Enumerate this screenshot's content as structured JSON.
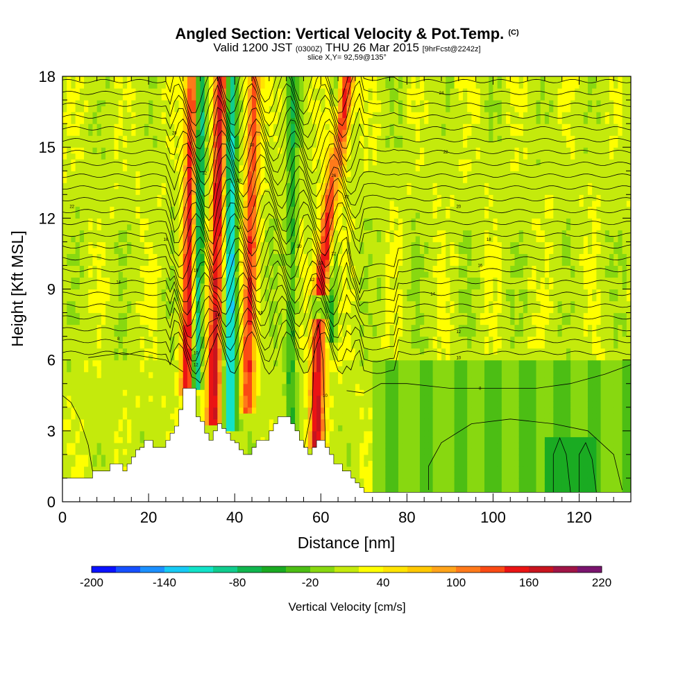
{
  "header": {
    "title": "Angled Section: Vertical Velocity & Pot.Temp.",
    "title_unit": "(C)",
    "valid_prefix": "Valid 1200 JST",
    "valid_zulu": "(0300Z)",
    "valid_date": "THU 26 Mar 2015",
    "forecast": "[9hrFcst@2242z]",
    "slice": "slice X,Y= 92,59@135°"
  },
  "chart_data": {
    "type": "heatmap",
    "xlabel": "Distance [nm]",
    "ylabel": "Height [Kft MSL]",
    "xlim": [
      0,
      132
    ],
    "ylim": [
      0,
      18
    ],
    "x_ticks": [
      0,
      20,
      40,
      60,
      80,
      100,
      120
    ],
    "y_ticks": [
      0,
      3,
      6,
      9,
      12,
      15,
      18
    ],
    "x_minor_step": 4,
    "y_minor_step": 1,
    "grid": false,
    "colorbar": {
      "title": "Vertical Velocity [cm/s]",
      "min": -200,
      "max": 220,
      "step": 20,
      "tick_values": [
        -200,
        -140,
        -80,
        -20,
        40,
        100,
        160,
        220
      ],
      "tick_labels": [
        "-200",
        "-140",
        "-80",
        "-20",
        "40",
        "100",
        "160",
        "220"
      ],
      "colors": [
        "#0a12ff",
        "#1650ff",
        "#1c90ff",
        "#17caf5",
        "#12e2c8",
        "#10cc8e",
        "#10b64e",
        "#1aab22",
        "#4cbe14",
        "#88d810",
        "#c4ea0c",
        "#ffff00",
        "#ffe400",
        "#ffc800",
        "#ffa41a",
        "#ff7a1a",
        "#fa4a14",
        "#ea1414",
        "#c8141e",
        "#a01446",
        "#7a146e"
      ]
    },
    "terrain_nm_kft": [
      [
        0,
        1
      ],
      [
        1,
        1
      ],
      [
        2,
        1
      ],
      [
        3,
        1
      ],
      [
        4,
        1
      ],
      [
        5,
        1
      ],
      [
        6,
        1
      ],
      [
        7,
        1.3
      ],
      [
        8,
        1.3
      ],
      [
        9,
        1.3
      ],
      [
        10,
        1.3
      ],
      [
        11,
        1.6
      ],
      [
        12,
        1.6
      ],
      [
        13,
        1.6
      ],
      [
        14,
        1.3
      ],
      [
        15,
        1.6
      ],
      [
        16,
        1.9
      ],
      [
        17,
        2.2
      ],
      [
        18,
        2.3
      ],
      [
        19,
        2.6
      ],
      [
        20,
        2.6
      ],
      [
        21,
        2.3
      ],
      [
        22,
        2.3
      ],
      [
        23,
        2.3
      ],
      [
        24,
        2.6
      ],
      [
        25,
        2.9
      ],
      [
        26,
        3.2
      ],
      [
        27,
        3.9
      ],
      [
        28,
        4.8
      ],
      [
        29,
        4.8
      ],
      [
        30,
        4.8
      ],
      [
        31,
        3.6
      ],
      [
        32,
        3.4
      ],
      [
        33,
        2.9
      ],
      [
        34,
        2.6
      ],
      [
        35,
        3.0
      ],
      [
        36,
        3.3
      ],
      [
        37,
        3.1
      ],
      [
        38,
        2.9
      ],
      [
        39,
        2.6
      ],
      [
        40,
        2.5
      ],
      [
        41,
        2.2
      ],
      [
        42,
        2.0
      ],
      [
        43,
        2.0
      ],
      [
        44,
        2.3
      ],
      [
        45,
        2.6
      ],
      [
        46,
        2.6
      ],
      [
        47,
        2.6
      ],
      [
        48,
        3.0
      ],
      [
        49,
        3.3
      ],
      [
        50,
        3.6
      ],
      [
        51,
        3.6
      ],
      [
        52,
        3.6
      ],
      [
        53,
        3.3
      ],
      [
        54,
        3.0
      ],
      [
        55,
        2.6
      ],
      [
        56,
        2.3
      ],
      [
        57,
        2.0
      ],
      [
        58,
        2.3
      ],
      [
        59,
        2.6
      ],
      [
        60,
        2.6
      ],
      [
        61,
        2.3
      ],
      [
        62,
        2.0
      ],
      [
        63,
        1.6
      ],
      [
        64,
        1.6
      ],
      [
        65,
        1.3
      ],
      [
        66,
        1.3
      ],
      [
        67,
        1.0
      ],
      [
        68,
        0.8
      ],
      [
        69,
        0.6
      ],
      [
        70,
        0.4
      ],
      [
        71,
        0.4
      ],
      [
        72,
        0.4
      ],
      [
        132,
        0.4
      ]
    ],
    "updraft_bands": [
      {
        "x_bottom": 29,
        "x_top": 30.5,
        "y_bottom": 4.8,
        "y_top": 18,
        "w": 2.2,
        "v": 160
      },
      {
        "x_bottom": 35,
        "x_top": 37,
        "y_bottom": 3.5,
        "y_top": 18,
        "w": 2.2,
        "v": 160
      },
      {
        "x_bottom": 43,
        "x_top": 44.5,
        "y_bottom": 4,
        "y_top": 18,
        "w": 2.0,
        "v": 120
      },
      {
        "x_bottom": 59,
        "x_top": 59.5,
        "y_bottom": 2.5,
        "y_top": 7.5,
        "w": 2.2,
        "v": 160
      },
      {
        "x_bottom": 60,
        "x_top": 66,
        "y_bottom": 9,
        "y_top": 18,
        "w": 2.4,
        "v": 160
      }
    ],
    "downdraft_bands": [
      {
        "x_bottom": 31,
        "x_top": 32,
        "y_bottom": 5,
        "y_top": 18,
        "w": 1.6,
        "v": -150
      },
      {
        "x_bottom": 39,
        "x_top": 39,
        "y_bottom": 3.2,
        "y_top": 18,
        "w": 1.8,
        "v": -140
      },
      {
        "x_bottom": 53,
        "x_top": 53.5,
        "y_bottom": 2.5,
        "y_top": 18,
        "w": 1.6,
        "v": -60
      },
      {
        "x_bottom": 62.5,
        "x_top": 64,
        "y_bottom": 7,
        "y_top": 18,
        "w": 1.6,
        "v": -60
      }
    ],
    "isentrope_labels": [
      {
        "x": 2.2,
        "y": 12.5,
        "text": "22"
      },
      {
        "x": 24,
        "y": 11.1,
        "text": "16"
      },
      {
        "x": 13,
        "y": 9.3,
        "text": "14"
      },
      {
        "x": 13,
        "y": 6.9,
        "text": "8"
      },
      {
        "x": 26,
        "y": 15.6,
        "text": "28"
      },
      {
        "x": 33,
        "y": 13.9,
        "text": "32"
      },
      {
        "x": 41,
        "y": 13.6,
        "text": "30"
      },
      {
        "x": 44,
        "y": 15.1,
        "text": "30"
      },
      {
        "x": 41,
        "y": 11.6,
        "text": "18"
      },
      {
        "x": 31,
        "y": 9.8,
        "text": "18"
      },
      {
        "x": 36,
        "y": 7.9,
        "text": "14"
      },
      {
        "x": 46,
        "y": 8.0,
        "text": "16"
      },
      {
        "x": 31,
        "y": 6.3,
        "text": "10"
      },
      {
        "x": 31,
        "y": 5.8,
        "text": "12"
      },
      {
        "x": 55,
        "y": 10.8,
        "text": "20"
      },
      {
        "x": 60,
        "y": 10.1,
        "text": "22"
      },
      {
        "x": 58,
        "y": 9.4,
        "text": "12"
      },
      {
        "x": 63,
        "y": 10.5,
        "text": "22"
      },
      {
        "x": 63,
        "y": 13.8,
        "text": "26"
      },
      {
        "x": 66,
        "y": 12.9,
        "text": "32"
      },
      {
        "x": 88,
        "y": 17.3,
        "text": "24"
      },
      {
        "x": 89,
        "y": 14.8,
        "text": "22"
      },
      {
        "x": 92,
        "y": 12.5,
        "text": "20"
      },
      {
        "x": 99,
        "y": 11.1,
        "text": "18"
      },
      {
        "x": 97,
        "y": 10.0,
        "text": "16"
      },
      {
        "x": 86,
        "y": 8.8,
        "text": "14"
      },
      {
        "x": 92,
        "y": 7.2,
        "text": "12"
      },
      {
        "x": 92,
        "y": 6.1,
        "text": "10"
      },
      {
        "x": 97,
        "y": 4.8,
        "text": "8"
      },
      {
        "x": 61,
        "y": 4.5,
        "text": "10"
      }
    ]
  }
}
